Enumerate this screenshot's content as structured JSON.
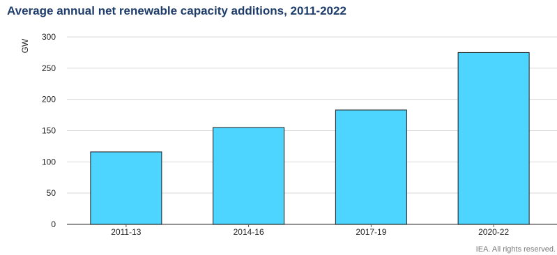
{
  "chart_data": {
    "type": "bar",
    "title": "Average annual net renewable capacity additions, 2011-2022",
    "xlabel": "",
    "ylabel": "GW",
    "categories": [
      "2011-13",
      "2014-16",
      "2017-19",
      "2020-22"
    ],
    "values": [
      116,
      155,
      183,
      275
    ],
    "ylim": [
      0,
      300
    ],
    "yticks": [
      0,
      50,
      100,
      150,
      200,
      250,
      300
    ],
    "grid": true,
    "legend": "none",
    "colors": {
      "bar": "#4dd4ff",
      "bar_edge": "#1a1a1a",
      "grid": "#d9d9d9",
      "title": "#1f3d6b"
    },
    "source": "IEA. All rights reserved."
  }
}
